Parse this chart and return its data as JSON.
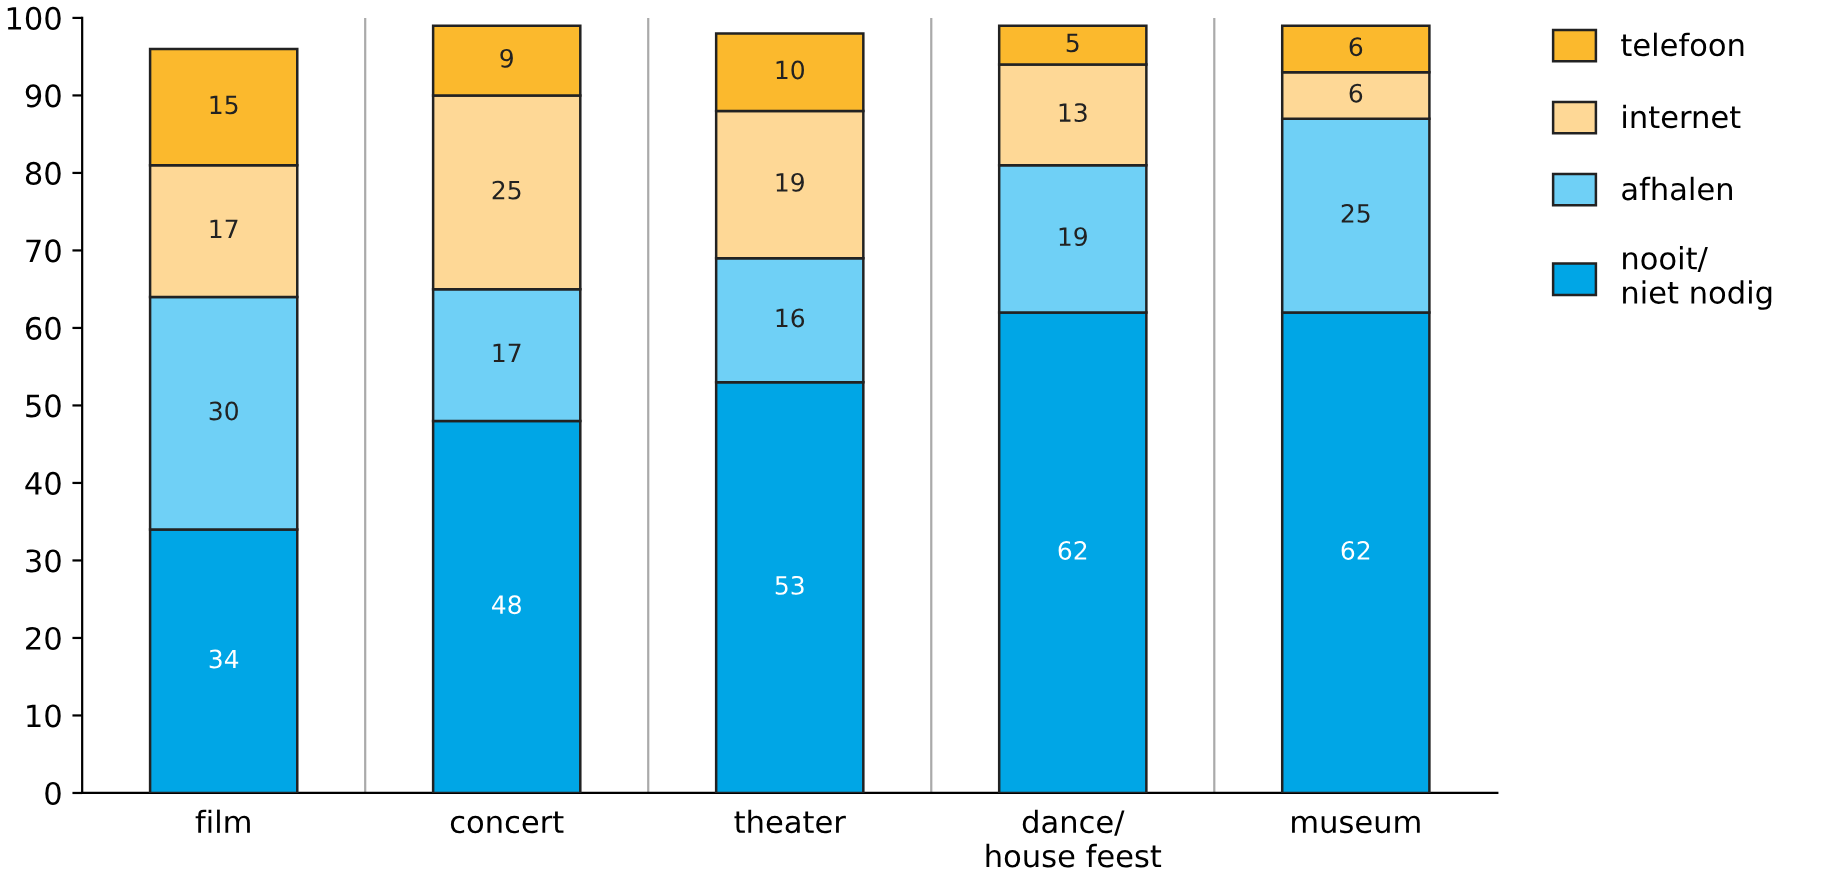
{
  "chart_data": {
    "type": "bar",
    "stacked": true,
    "categories": [
      "film",
      "concert",
      "theater",
      "dance/\nhouse feest",
      "museum"
    ],
    "series": [
      {
        "name": "nooit/\nniet nodig",
        "color": "#00a6e6",
        "values": [
          34,
          48,
          53,
          62,
          62
        ]
      },
      {
        "name": "afhalen",
        "color": "#6fd0f6",
        "values": [
          30,
          17,
          16,
          19,
          25
        ]
      },
      {
        "name": "internet",
        "color": "#fed896",
        "values": [
          17,
          25,
          19,
          13,
          6
        ]
      },
      {
        "name": "telefoon",
        "color": "#fbb92d",
        "values": [
          15,
          9,
          10,
          5,
          6
        ]
      }
    ],
    "ylim": [
      0,
      100
    ],
    "yticks": [
      0,
      10,
      20,
      30,
      40,
      50,
      60,
      70,
      80,
      90,
      100
    ],
    "data_labels": true,
    "grid": "x",
    "legend": "right"
  }
}
